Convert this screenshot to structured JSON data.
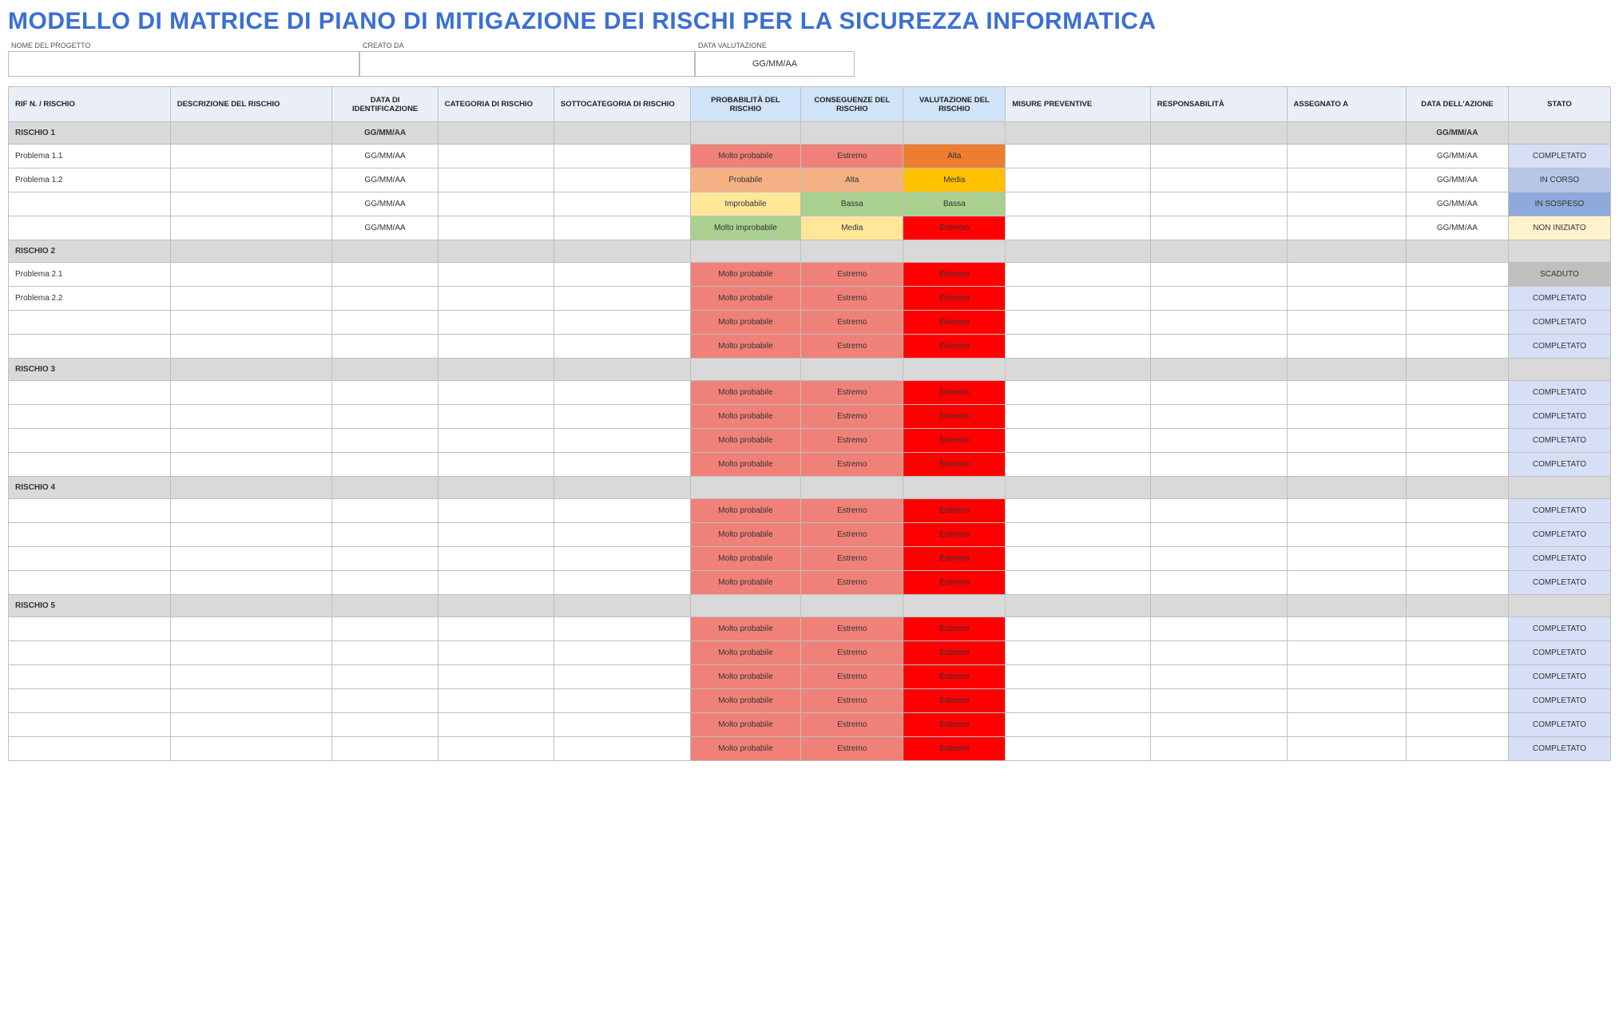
{
  "title": "MODELLO DI MATRICE DI PIANO DI MITIGAZIONE DEI RISCHI PER LA SICUREZZA INFORMATICA",
  "meta": {
    "project_label": "NOME DEL PROGETTO",
    "project_value": "",
    "created_label": "CREATO DA",
    "created_value": "",
    "date_label": "DATA VALUTAZIONE",
    "date_value": "GG/MM/AA"
  },
  "columns": [
    "RIF N. / RISCHIO",
    "DESCRIZIONE DEL RISCHIO",
    "DATA DI IDENTIFICAZIONE",
    "CATEGORIA DI RISCHIO",
    "SOTTOCATEGORIA DI RISCHIO",
    "PROBABILITÀ DEL RISCHIO",
    "CONSEGUENZE DEL RISCHIO",
    "VALUTAZIONE DEL RISCHIO",
    "MISURE PREVENTIVE",
    "RESPONSABILITÀ",
    "ASSEGNATO A",
    "DATA DELL'AZIONE",
    "STATO"
  ],
  "col_widths": [
    "9.5%",
    "9.5%",
    "6.2%",
    "6.8%",
    "8%",
    "6.5%",
    "6%",
    "6%",
    "8.5%",
    "8%",
    "7%",
    "6%",
    "6%"
  ],
  "header_blue_idx": [
    5,
    6,
    7
  ],
  "header_center_idx": [
    2,
    11,
    12
  ],
  "rows": [
    {
      "type": "section",
      "label": "RISCHIO 1",
      "date": "GG/MM/AA",
      "action_date": "GG/MM/AA"
    },
    {
      "type": "data",
      "ref": "Problema 1.1",
      "date": "GG/MM/AA",
      "prob": "Molto probabile",
      "prob_cls": "c-molto-prob",
      "cons": "Estremo",
      "cons_cls": "c-estremo",
      "rate": "Alta",
      "rate_cls": "c-rt-alta",
      "action_date": "GG/MM/AA",
      "status": "COMPLETATO",
      "status_cls": "s-completato"
    },
    {
      "type": "data",
      "ref": "Problema 1.2",
      "date": "GG/MM/AA",
      "prob": "Probabile",
      "prob_cls": "c-probabile",
      "cons": "Alta",
      "cons_cls": "c-alta-cons",
      "rate": "Media",
      "rate_cls": "c-rt-media",
      "action_date": "GG/MM/AA",
      "status": "IN CORSO",
      "status_cls": "s-incorso"
    },
    {
      "type": "data",
      "ref": "",
      "date": "GG/MM/AA",
      "prob": "Improbabile",
      "prob_cls": "c-improb",
      "cons": "Bassa",
      "cons_cls": "c-bassa-cons",
      "rate": "Bassa",
      "rate_cls": "c-rt-bassa",
      "action_date": "GG/MM/AA",
      "status": "IN SOSPESO",
      "status_cls": "s-insospeso"
    },
    {
      "type": "data",
      "ref": "",
      "date": "GG/MM/AA",
      "prob": "Molto improbabile",
      "prob_cls": "c-molto-improb",
      "cons": "Media",
      "cons_cls": "c-media-cons",
      "rate": "Estremo",
      "rate_cls": "c-rt-estremo",
      "action_date": "GG/MM/AA",
      "status": "NON INIZIATO",
      "status_cls": "s-noniniziato"
    },
    {
      "type": "section",
      "label": "RISCHIO 2"
    },
    {
      "type": "data",
      "ref": "Problema 2.1",
      "prob": "Molto probabile",
      "prob_cls": "c-molto-prob",
      "cons": "Estremo",
      "cons_cls": "c-estremo",
      "rate": "Estremo",
      "rate_cls": "c-rt-estremo",
      "status": "SCADUTO",
      "status_cls": "s-scaduto"
    },
    {
      "type": "data",
      "ref": "Problema 2.2",
      "prob": "Molto probabile",
      "prob_cls": "c-molto-prob",
      "cons": "Estremo",
      "cons_cls": "c-estremo",
      "rate": "Estremo",
      "rate_cls": "c-rt-estremo",
      "status": "COMPLETATO",
      "status_cls": "s-completato"
    },
    {
      "type": "data",
      "ref": "",
      "prob": "Molto probabile",
      "prob_cls": "c-molto-prob",
      "cons": "Estremo",
      "cons_cls": "c-estremo",
      "rate": "Estremo",
      "rate_cls": "c-rt-estremo",
      "status": "COMPLETATO",
      "status_cls": "s-completato"
    },
    {
      "type": "data",
      "ref": "",
      "prob": "Molto probabile",
      "prob_cls": "c-molto-prob",
      "cons": "Estremo",
      "cons_cls": "c-estremo",
      "rate": "Estremo",
      "rate_cls": "c-rt-estremo",
      "status": "COMPLETATO",
      "status_cls": "s-completato"
    },
    {
      "type": "section",
      "label": "RISCHIO 3"
    },
    {
      "type": "data",
      "ref": "",
      "prob": "Molto probabile",
      "prob_cls": "c-molto-prob",
      "cons": "Estremo",
      "cons_cls": "c-estremo",
      "rate": "Estremo",
      "rate_cls": "c-rt-estremo",
      "status": "COMPLETATO",
      "status_cls": "s-completato"
    },
    {
      "type": "data",
      "ref": "",
      "prob": "Molto probabile",
      "prob_cls": "c-molto-prob",
      "cons": "Estremo",
      "cons_cls": "c-estremo",
      "rate": "Estremo",
      "rate_cls": "c-rt-estremo",
      "status": "COMPLETATO",
      "status_cls": "s-completato"
    },
    {
      "type": "data",
      "ref": "",
      "prob": "Molto probabile",
      "prob_cls": "c-molto-prob",
      "cons": "Estremo",
      "cons_cls": "c-estremo",
      "rate": "Estremo",
      "rate_cls": "c-rt-estremo",
      "status": "COMPLETATO",
      "status_cls": "s-completato"
    },
    {
      "type": "data",
      "ref": "",
      "prob": "Molto probabile",
      "prob_cls": "c-molto-prob",
      "cons": "Estremo",
      "cons_cls": "c-estremo",
      "rate": "Estremo",
      "rate_cls": "c-rt-estremo",
      "status": "COMPLETATO",
      "status_cls": "s-completato"
    },
    {
      "type": "section",
      "label": "RISCHIO 4"
    },
    {
      "type": "data",
      "ref": "",
      "prob": "Molto probabile",
      "prob_cls": "c-molto-prob",
      "cons": "Estremo",
      "cons_cls": "c-estremo",
      "rate": "Estremo",
      "rate_cls": "c-rt-estremo",
      "status": "COMPLETATO",
      "status_cls": "s-completato"
    },
    {
      "type": "data",
      "ref": "",
      "prob": "Molto probabile",
      "prob_cls": "c-molto-prob",
      "cons": "Estremo",
      "cons_cls": "c-estremo",
      "rate": "Estremo",
      "rate_cls": "c-rt-estremo",
      "status": "COMPLETATO",
      "status_cls": "s-completato"
    },
    {
      "type": "data",
      "ref": "",
      "prob": "Molto probabile",
      "prob_cls": "c-molto-prob",
      "cons": "Estremo",
      "cons_cls": "c-estremo",
      "rate": "Estremo",
      "rate_cls": "c-rt-estremo",
      "status": "COMPLETATO",
      "status_cls": "s-completato"
    },
    {
      "type": "data",
      "ref": "",
      "prob": "Molto probabile",
      "prob_cls": "c-molto-prob",
      "cons": "Estremo",
      "cons_cls": "c-estremo",
      "rate": "Estremo",
      "rate_cls": "c-rt-estremo",
      "status": "COMPLETATO",
      "status_cls": "s-completato"
    },
    {
      "type": "section",
      "label": "RISCHIO 5"
    },
    {
      "type": "data",
      "ref": "",
      "prob": "Molto probabile",
      "prob_cls": "c-molto-prob",
      "cons": "Estremo",
      "cons_cls": "c-estremo",
      "rate": "Estremo",
      "rate_cls": "c-rt-estremo",
      "status": "COMPLETATO",
      "status_cls": "s-completato"
    },
    {
      "type": "data",
      "ref": "",
      "prob": "Molto probabile",
      "prob_cls": "c-molto-prob",
      "cons": "Estremo",
      "cons_cls": "c-estremo",
      "rate": "Estremo",
      "rate_cls": "c-rt-estremo",
      "status": "COMPLETATO",
      "status_cls": "s-completato"
    },
    {
      "type": "data",
      "ref": "",
      "prob": "Molto probabile",
      "prob_cls": "c-molto-prob",
      "cons": "Estremo",
      "cons_cls": "c-estremo",
      "rate": "Estremo",
      "rate_cls": "c-rt-estremo",
      "status": "COMPLETATO",
      "status_cls": "s-completato"
    },
    {
      "type": "data",
      "ref": "",
      "prob": "Molto probabile",
      "prob_cls": "c-molto-prob",
      "cons": "Estremo",
      "cons_cls": "c-estremo",
      "rate": "Estremo",
      "rate_cls": "c-rt-estremo",
      "status": "COMPLETATO",
      "status_cls": "s-completato"
    },
    {
      "type": "data",
      "ref": "",
      "prob": "Molto probabile",
      "prob_cls": "c-molto-prob",
      "cons": "Estremo",
      "cons_cls": "c-estremo",
      "rate": "Estremo",
      "rate_cls": "c-rt-estremo",
      "status": "COMPLETATO",
      "status_cls": "s-completato"
    },
    {
      "type": "data",
      "ref": "",
      "prob": "Molto probabile",
      "prob_cls": "c-molto-prob",
      "cons": "Estremo",
      "cons_cls": "c-estremo",
      "rate": "Estremo",
      "rate_cls": "c-rt-estremo",
      "status": "COMPLETATO",
      "status_cls": "s-completato"
    }
  ]
}
